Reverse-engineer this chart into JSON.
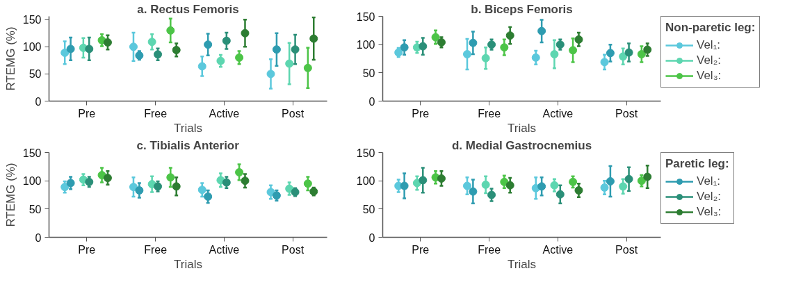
{
  "chart_data": [
    {
      "type": "scatter",
      "title": "a. Rectus Femoris",
      "xlabel": "Trials",
      "ylabel": "RTEMG (%)",
      "categories": [
        "Pre",
        "Free",
        "Active",
        "Post"
      ],
      "ylim": [
        0,
        156
      ],
      "yticks": [
        0,
        50,
        100,
        150
      ],
      "marker": "circle",
      "series": [
        {
          "color": "#5bc8dc",
          "values": [
            89,
            100,
            64,
            50
          ],
          "errors": [
            21,
            26,
            18,
            27
          ]
        },
        {
          "color": "#5dd6b0",
          "values": [
            98,
            109,
            74,
            69
          ],
          "errors": [
            18,
            14,
            11,
            38
          ]
        },
        {
          "color": "#4cc447",
          "values": [
            112,
            130,
            80,
            61
          ],
          "errors": [
            11,
            22,
            12,
            37
          ]
        },
        {
          "color": "#2e9cb0",
          "values": [
            96,
            84,
            104,
            95
          ],
          "errors": [
            21,
            8,
            20,
            30
          ]
        },
        {
          "color": "#2a8f78",
          "values": [
            96,
            86,
            111,
            95
          ],
          "errors": [
            21,
            11,
            15,
            27
          ]
        },
        {
          "color": "#2d7d32",
          "values": [
            108,
            94,
            125,
            115
          ],
          "errors": [
            13,
            12,
            25,
            39
          ]
        }
      ]
    },
    {
      "type": "scatter",
      "title": "b. Biceps Femoris",
      "xlabel": "Trials",
      "categories": [
        "Pre",
        "Free",
        "Active",
        "Post"
      ],
      "ylim": [
        0,
        150
      ],
      "yticks": [
        0,
        50,
        100,
        150
      ],
      "marker": "circle",
      "legend": "right",
      "legend_title": "Non-paretic leg:",
      "series": [
        {
          "name": "Vel₁:",
          "color": "#5bc8dc",
          "values": [
            86,
            83,
            77,
            69
          ],
          "errors": [
            8,
            27,
            12,
            13
          ]
        },
        {
          "name": "Vel₂:",
          "color": "#5dd6b0",
          "values": [
            95,
            76,
            83,
            79
          ],
          "errors": [
            10,
            19,
            25,
            14
          ]
        },
        {
          "name": "Vel₃:",
          "color": "#4cc447",
          "values": [
            113,
            95,
            90,
            83
          ],
          "errors": [
            12,
            14,
            21,
            14
          ]
        },
        {
          "color": "#2e9cb0",
          "values": [
            95,
            103,
            124,
            85
          ],
          "errors": [
            13,
            20,
            20,
            15
          ]
        },
        {
          "color": "#2a8f78",
          "values": [
            97,
            100,
            100,
            86
          ],
          "errors": [
            15,
            9,
            9,
            16
          ]
        },
        {
          "color": "#2d7d32",
          "values": [
            104,
            116,
            109,
            91
          ],
          "errors": [
            9,
            15,
            12,
            11
          ]
        }
      ]
    },
    {
      "type": "scatter",
      "title": "c. Tibialis Anterior",
      "xlabel": "Trials",
      "ylabel": "RTEMG (%)",
      "categories": [
        "Pre",
        "Free",
        "Active",
        "Post"
      ],
      "ylim": [
        0,
        150
      ],
      "yticks": [
        0,
        50,
        100,
        150
      ],
      "marker": "circle",
      "series": [
        {
          "color": "#5bc8dc",
          "values": [
            89,
            89,
            84,
            80
          ],
          "errors": [
            10,
            17,
            12,
            12
          ]
        },
        {
          "color": "#5dd6b0",
          "values": [
            102,
            94,
            101,
            86
          ],
          "errors": [
            10,
            14,
            12,
            11
          ]
        },
        {
          "color": "#4cc447",
          "values": [
            110,
            106,
            115,
            95
          ],
          "errors": [
            13,
            17,
            14,
            12
          ]
        },
        {
          "color": "#2e9cb0",
          "values": [
            96,
            83,
            72,
            74
          ],
          "errors": [
            11,
            13,
            11,
            9
          ]
        },
        {
          "color": "#2a8f78",
          "values": [
            98,
            90,
            97,
            80
          ],
          "errors": [
            9,
            9,
            10,
            7
          ]
        },
        {
          "color": "#2d7d32",
          "values": [
            105,
            90,
            100,
            81
          ],
          "errors": [
            12,
            16,
            12,
            7
          ]
        }
      ]
    },
    {
      "type": "scatter",
      "title": "d. Medial Gastrocnemius",
      "xlabel": "Trials",
      "categories": [
        "Pre",
        "Free",
        "Active",
        "Post"
      ],
      "ylim": [
        0,
        150
      ],
      "yticks": [
        0,
        50,
        100,
        150
      ],
      "marker": "circle",
      "legend": "right",
      "legend_title": "Paretic leg:",
      "series": [
        {
          "color": "#5bc8dc",
          "values": [
            91,
            91,
            87,
            88
          ],
          "errors": [
            11,
            15,
            19,
            12
          ]
        },
        {
          "color": "#5dd6b0",
          "values": [
            96,
            93,
            92,
            90
          ],
          "errors": [
            12,
            15,
            11,
            13
          ]
        },
        {
          "color": "#4cc447",
          "values": [
            106,
            98,
            98,
            100
          ],
          "errors": [
            11,
            11,
            10,
            10
          ]
        },
        {
          "name": "Vel₁:",
          "color": "#2e9cb0",
          "values": [
            91,
            81,
            90,
            99
          ],
          "errors": [
            22,
            21,
            16,
            27
          ]
        },
        {
          "name": "Vel₂:",
          "color": "#2a8f78",
          "values": [
            101,
            75,
            76,
            103
          ],
          "errors": [
            22,
            11,
            16,
            21
          ]
        },
        {
          "name": "Vel₃:",
          "color": "#2d7d32",
          "values": [
            104,
            92,
            83,
            107
          ],
          "errors": [
            13,
            13,
            12,
            20
          ]
        }
      ]
    }
  ]
}
